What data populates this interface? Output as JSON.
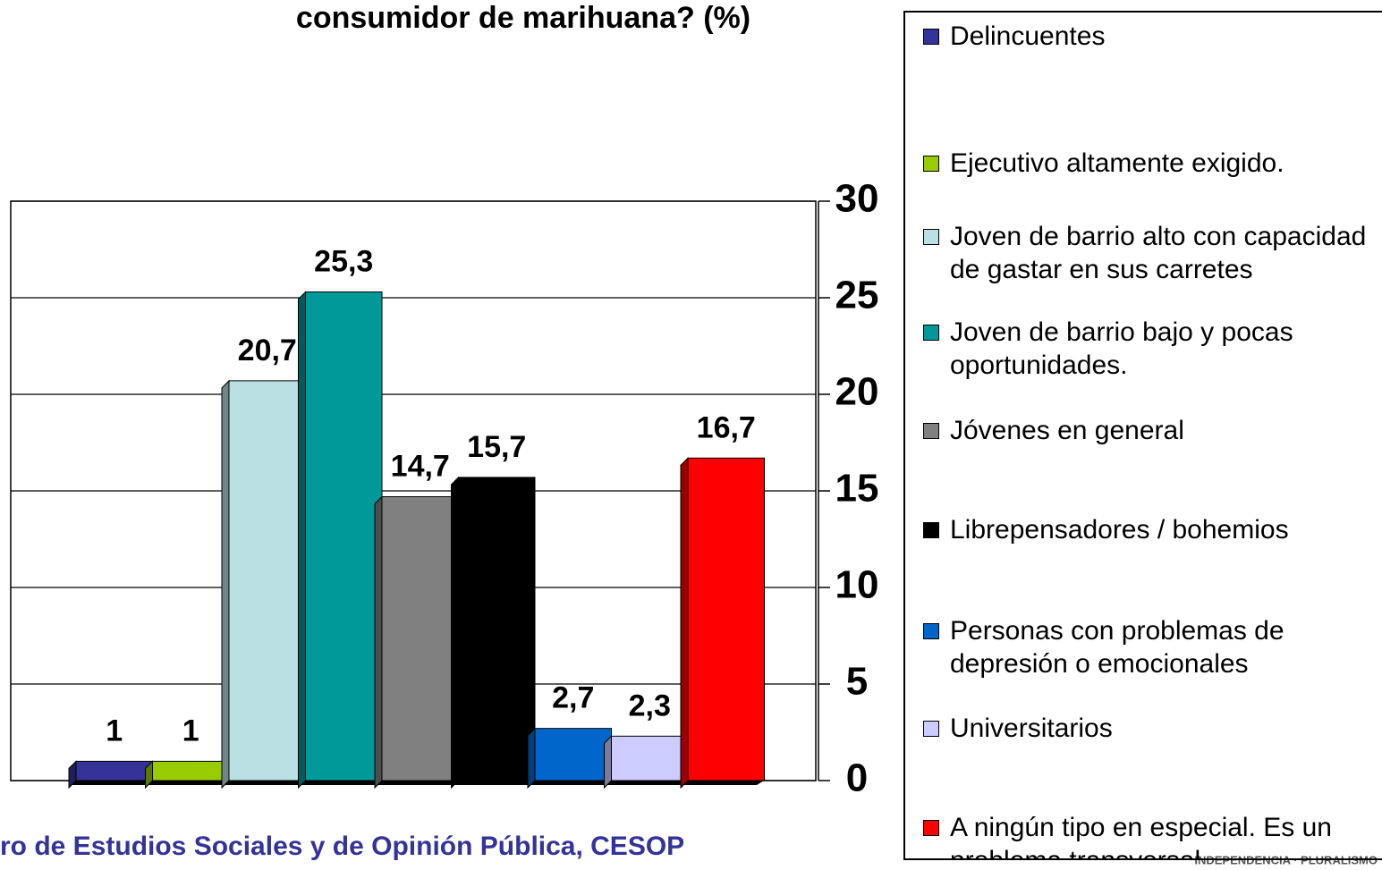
{
  "chart_data": {
    "type": "bar",
    "title": "consumidor de marihuana? (%)",
    "source": "ro de Estudios Sociales y de Opinión Pública, CESOP",
    "logo": "INDEPENDENCIA · PLURALISMO",
    "categories": [
      "Delincuentes",
      "Ejecutivo altamente exigido.",
      "Joven de barrio alto con capacidad de gastar en sus carretes",
      "Joven de barrio bajo y pocas oportunidades.",
      "Jóvenes en general",
      "Librepensadores / bohemios",
      "Personas con problemas de depresión o emocionales",
      "Universitarios",
      "A ningún tipo en especial. Es un problema transversal."
    ],
    "values": [
      1,
      1,
      20.7,
      25.3,
      14.7,
      15.7,
      2.7,
      2.3,
      16.7
    ],
    "value_labels": [
      "1",
      "1",
      "20,7",
      "25,3",
      "14,7",
      "15,7",
      "2,7",
      "2,3",
      "16,7"
    ],
    "colors": [
      "#333399",
      "#99cc00",
      "#bbe0e3",
      "#009999",
      "#808080",
      "#000000",
      "#0066cc",
      "#ccccff",
      "#ff0000"
    ],
    "ylim": [
      0,
      30
    ],
    "yticks": [
      0,
      5,
      10,
      15,
      20,
      25,
      30
    ],
    "grid": true
  }
}
